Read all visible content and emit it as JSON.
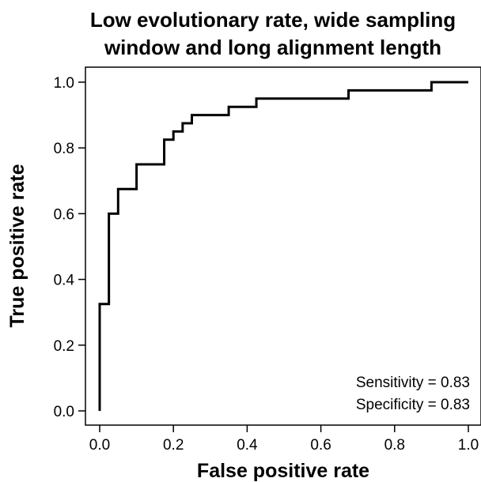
{
  "chart_data": {
    "type": "line",
    "title_lines": [
      "Low evolutionary rate, wide sampling",
      "window and long alignment length"
    ],
    "xlabel": "False positive rate",
    "ylabel": "True positive rate",
    "xlim": [
      0,
      1
    ],
    "ylim": [
      0,
      1
    ],
    "xticks": [
      "0.0",
      "0.2",
      "0.4",
      "0.6",
      "0.8",
      "1.0"
    ],
    "yticks": [
      "0.0",
      "0.2",
      "0.4",
      "0.6",
      "0.8",
      "1.0"
    ],
    "grid": false,
    "series": [
      {
        "color": "#000000",
        "step": true,
        "x": [
          0.0,
          0.0,
          0.025,
          0.025,
          0.05,
          0.05,
          0.1,
          0.1,
          0.175,
          0.175,
          0.2,
          0.2,
          0.225,
          0.225,
          0.25,
          0.25,
          0.35,
          0.35,
          0.425,
          0.425,
          0.675,
          0.675,
          0.9,
          0.9,
          1.0
        ],
        "y": [
          0.0,
          0.325,
          0.325,
          0.6,
          0.6,
          0.675,
          0.675,
          0.75,
          0.75,
          0.825,
          0.825,
          0.85,
          0.85,
          0.875,
          0.875,
          0.9,
          0.9,
          0.925,
          0.925,
          0.95,
          0.95,
          0.975,
          0.975,
          1.0,
          1.0
        ]
      }
    ],
    "annotations": [
      "Sensitivity = 0.83",
      "Specificity = 0.83"
    ]
  }
}
